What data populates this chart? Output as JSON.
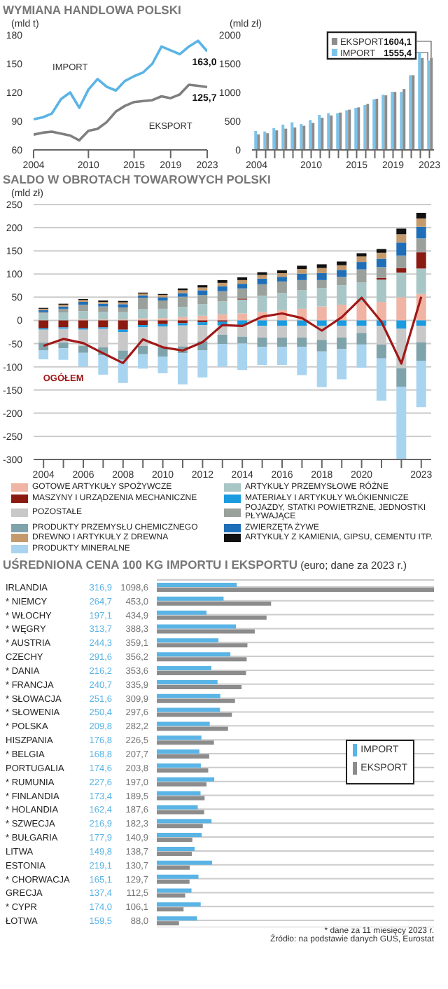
{
  "chart_data": [
    {
      "type": "line",
      "title": "WYMIANA HANDLOWA POLSKI",
      "ylabel": "(mld t)",
      "x": [
        2004,
        2005,
        2006,
        2007,
        2008,
        2009,
        2010,
        2011,
        2012,
        2013,
        2014,
        2015,
        2016,
        2017,
        2018,
        2019,
        2020,
        2021,
        2022,
        2023
      ],
      "xlim": [
        2004,
        2023
      ],
      "xticks": [
        2004,
        2010,
        2015,
        2019,
        2023
      ],
      "ylim": [
        60,
        180
      ],
      "yticks": [
        60,
        90,
        120,
        150,
        180
      ],
      "series": [
        {
          "name": "IMPORT",
          "color": "#5ab4e5",
          "values": [
            92,
            94,
            98,
            113,
            120,
            104,
            123,
            134,
            126,
            122,
            132,
            137,
            141,
            150,
            168,
            164,
            160,
            168,
            174,
            163.0
          ],
          "value_labels": [
            null,
            null,
            null,
            null,
            null,
            null,
            null,
            null,
            null,
            null,
            null,
            null,
            null,
            null,
            null,
            null,
            null,
            null,
            null,
            "163,0"
          ]
        },
        {
          "name": "EKSPORT",
          "color": "#7f7f7f",
          "values": [
            76,
            78,
            79,
            77,
            75,
            70,
            80,
            82,
            89,
            100,
            106,
            110,
            111,
            112,
            116,
            114,
            118,
            128,
            127,
            125.7
          ],
          "value_labels": [
            null,
            null,
            null,
            null,
            null,
            null,
            null,
            null,
            null,
            null,
            null,
            null,
            null,
            null,
            null,
            null,
            null,
            null,
            null,
            "125,7"
          ]
        }
      ]
    },
    {
      "type": "bar",
      "ylabel": "(mld zł)",
      "categories": [
        "2004",
        null,
        null,
        null,
        null,
        null,
        "2010",
        null,
        null,
        null,
        null,
        "2015",
        null,
        null,
        null,
        "2019",
        null,
        null,
        null,
        "2023"
      ],
      "ylim": [
        0,
        2000
      ],
      "yticks": [
        0,
        500,
        1000,
        1500,
        2000
      ],
      "legend": "top right",
      "series": [
        {
          "name": "IMPORT",
          "color": "#7cc3ea",
          "values": [
            330,
            320,
            380,
            440,
            480,
            450,
            520,
            610,
            640,
            640,
            690,
            730,
            780,
            880,
            960,
            1010,
            1010,
            1300,
            1700,
            1555.4
          ]
        },
        {
          "name": "EKSPORT",
          "color": "#8c8c8c",
          "values": [
            270,
            290,
            340,
            370,
            390,
            420,
            470,
            560,
            600,
            650,
            700,
            740,
            800,
            890,
            950,
            1010,
            1060,
            1300,
            1600,
            1604.1
          ]
        }
      ],
      "annotations": [
        {
          "text": "1555,4",
          "x": "2023",
          "y": 1555.4
        },
        {
          "text": "1604,1",
          "x": "2023",
          "y": 1604.1
        }
      ]
    },
    {
      "type": "bar",
      "title": "SALDO W OBROTACH TOWAROWYCH POLSKI",
      "ylabel": "(mld zł)",
      "stacked": true,
      "grid": "y",
      "legend": "bottom",
      "categories": [
        "2004",
        null,
        "2006",
        null,
        "2008",
        null,
        "2010",
        null,
        "2012",
        null,
        "2014",
        null,
        "2016",
        null,
        "2018",
        null,
        "2020",
        null,
        null,
        "2023"
      ],
      "ylim": [
        -300,
        250
      ],
      "yticks": [
        -300,
        -250,
        -200,
        -150,
        -100,
        -50,
        0,
        50,
        100,
        150,
        200,
        250
      ],
      "series": [
        {
          "name": "GOTOWE ARTYKUŁY SPOŻYWCZE",
          "color": "#f0b4a4",
          "values": [
            null,
            null,
            2,
            2,
            2,
            4,
            5,
            7,
            10,
            13,
            15,
            18,
            22,
            25,
            30,
            34,
            40,
            40,
            50,
            57
          ]
        },
        {
          "name": "ARTYKUŁY PRZEMYSŁOWE RÓŻNE",
          "color": "#a9c6c6",
          "values": [
            15,
            17,
            18,
            16,
            16,
            20,
            20,
            22,
            25,
            28,
            30,
            35,
            37,
            40,
            40,
            42,
            42,
            48,
            53,
            55
          ]
        },
        {
          "name": "MASZYNY I URZĄDZENIA MECHANICZNE",
          "color": "#8b1a10",
          "values": [
            -17,
            -15,
            -17,
            -15,
            -20,
            -10,
            -8,
            -6,
            -4,
            -3,
            2,
            null,
            0,
            0,
            0,
            0,
            0,
            4,
            10,
            35
          ]
        },
        {
          "name": "MATERIAŁY I ARTYKUŁY WŁÓKIENNICZE",
          "color": "#1a9be0",
          "values": [
            -3,
            -3,
            -3,
            -3,
            -5,
            -5,
            -5,
            -5,
            -6,
            -8,
            -10,
            -12,
            -12,
            -12,
            -12,
            -12,
            -12,
            -12,
            -18,
            -12
          ]
        },
        {
          "name": "POZOSTAŁE",
          "color": "#c8c8c8",
          "values": [
            -28,
            -30,
            -35,
            -40,
            -40,
            -40,
            -45,
            -45,
            -35,
            -20,
            -25,
            -25,
            -25,
            -25,
            -30,
            -25,
            -15,
            -40,
            -85,
            -35
          ]
        },
        {
          "name": "POJAZDY, STATKI POWIETRZNE, JEDNOSTKI PŁYWAJĄCE",
          "color": "#9aa19c",
          "values": [
            3,
            8,
            14,
            12,
            10,
            25,
            18,
            22,
            20,
            22,
            22,
            25,
            25,
            22,
            17,
            18,
            28,
            23,
            27,
            30
          ]
        },
        {
          "name": "PRODUKTY PRZEMYSŁU CHEMICZNEGO",
          "color": "#7fa3ab",
          "values": [
            -17,
            -12,
            -15,
            -17,
            -20,
            -18,
            -20,
            -15,
            -20,
            -20,
            -15,
            -20,
            -20,
            -20,
            -25,
            -25,
            -25,
            -30,
            -40,
            -40
          ]
        },
        {
          "name": "ZWIERZĘTA ŻYWE",
          "color": "#1f6fb8",
          "values": [
            4,
            5,
            6,
            6,
            7,
            5,
            7,
            8,
            10,
            11,
            10,
            12,
            10,
            14,
            15,
            15,
            16,
            18,
            28,
            25
          ]
        },
        {
          "name": "DREWNO I ARTYKUŁY Z DREWNA",
          "color": "#c49a6c",
          "values": [
            3,
            4,
            4,
            4,
            4,
            4,
            5,
            6,
            6,
            7,
            8,
            8,
            8,
            10,
            11,
            10,
            12,
            13,
            18,
            18
          ]
        },
        {
          "name": "ARTYKUŁY Z KAMIENIA, GIPSU, CEMENTU ITP.",
          "color": "#111111",
          "values": [
            2,
            2,
            2,
            3,
            3,
            2,
            2,
            4,
            5,
            6,
            6,
            6,
            6,
            7,
            8,
            8,
            7,
            8,
            12,
            12
          ]
        },
        {
          "name": "PRODUKTY MINERALNE",
          "color": "#a8d4f0",
          "values": [
            -19,
            -25,
            -30,
            -42,
            -50,
            -31,
            -36,
            -67,
            -58,
            -49,
            -57,
            -39,
            -39,
            -61,
            -77,
            -65,
            -50,
            -91,
            -156,
            -100
          ]
        },
        {
          "name": "OGÓŁEM",
          "type": "line",
          "color": "#a01818",
          "values": [
            -55,
            -40,
            -49,
            -71,
            -92,
            -41,
            -58,
            -65,
            -47,
            -10,
            -12,
            8,
            15,
            5,
            -22,
            7,
            49,
            -3,
            -93,
            51
          ]
        }
      ]
    },
    {
      "type": "bar",
      "orientation": "horizontal",
      "title": "UŚREDNIONA CENA 100 KG IMPORTU I EKSPORTU",
      "subtitle": "(euro; dane za 2023 r.)",
      "grid": "y",
      "legend": "right",
      "categories": [
        "IRLANDIA",
        "* NIEMCY",
        "* WŁOCHY",
        "* WĘGRY",
        "* AUSTRIA",
        "CZECHY",
        "* DANIA",
        "* FRANCJA",
        "* SŁOWACJA",
        "* SŁOWENIA",
        "* POLSKA",
        "HISZPANIA",
        "* BELGIA",
        "PORTUGALIA",
        "* RUMUNIA",
        "* FINLANDIA",
        "* HOLANDIA",
        "* SZWECJA",
        "* BUŁGARIA",
        "LITWA",
        "ESTONIA",
        "* CHORWACJA",
        "GRECJA",
        "* CYPR",
        "ŁOTWA"
      ],
      "series": [
        {
          "name": "IMPORT",
          "color": "#5ab4e5",
          "values": [
            316.9,
            264.7,
            197.1,
            313.7,
            244.3,
            291.6,
            216.2,
            240.7,
            251.6,
            250.4,
            209.8,
            176.8,
            168.8,
            174.6,
            227.6,
            173.4,
            162.4,
            216.9,
            177.9,
            149.8,
            219.1,
            165.1,
            137.4,
            174.0,
            159.5
          ],
          "value_labels": [
            "316,9",
            "264,7",
            "197,1",
            "313,7",
            "244,3",
            "291,6",
            "216,2",
            "240,7",
            "251,6",
            "250,4",
            "209,8",
            "176,8",
            "168,8",
            "174,6",
            "227,6",
            "173,4",
            "162,4",
            "216,9",
            "177,9",
            "149,8",
            "219,1",
            "165,1",
            "137,4",
            "174,0",
            "159,5"
          ]
        },
        {
          "name": "EKSPORT",
          "color": "#8c8c8c",
          "values": [
            1098.6,
            453.0,
            434.9,
            388.3,
            359.1,
            356.2,
            353.6,
            335.9,
            309.9,
            297.6,
            282.2,
            226.5,
            207.7,
            203.8,
            197.0,
            189.5,
            187.6,
            182.3,
            140.9,
            138.7,
            130.7,
            129.7,
            112.5,
            106.1,
            88.0
          ],
          "value_labels": [
            "1098,6",
            "453,0",
            "434,9",
            "388,3",
            "359,1",
            "356,2",
            "353,6",
            "335,9",
            "309,9",
            "297,6",
            "282,2",
            "226,5",
            "207,7",
            "203,8",
            "197,0",
            "189,5",
            "187,6",
            "182,3",
            "140,9",
            "138,7",
            "130,7",
            "129,7",
            "112,5",
            "106,1",
            "88,0"
          ]
        }
      ],
      "annotations": [
        "* dane za 11 miesięcy 2023 r.",
        "Źródło: na podstawie danych GUS, Eurostat"
      ]
    }
  ]
}
